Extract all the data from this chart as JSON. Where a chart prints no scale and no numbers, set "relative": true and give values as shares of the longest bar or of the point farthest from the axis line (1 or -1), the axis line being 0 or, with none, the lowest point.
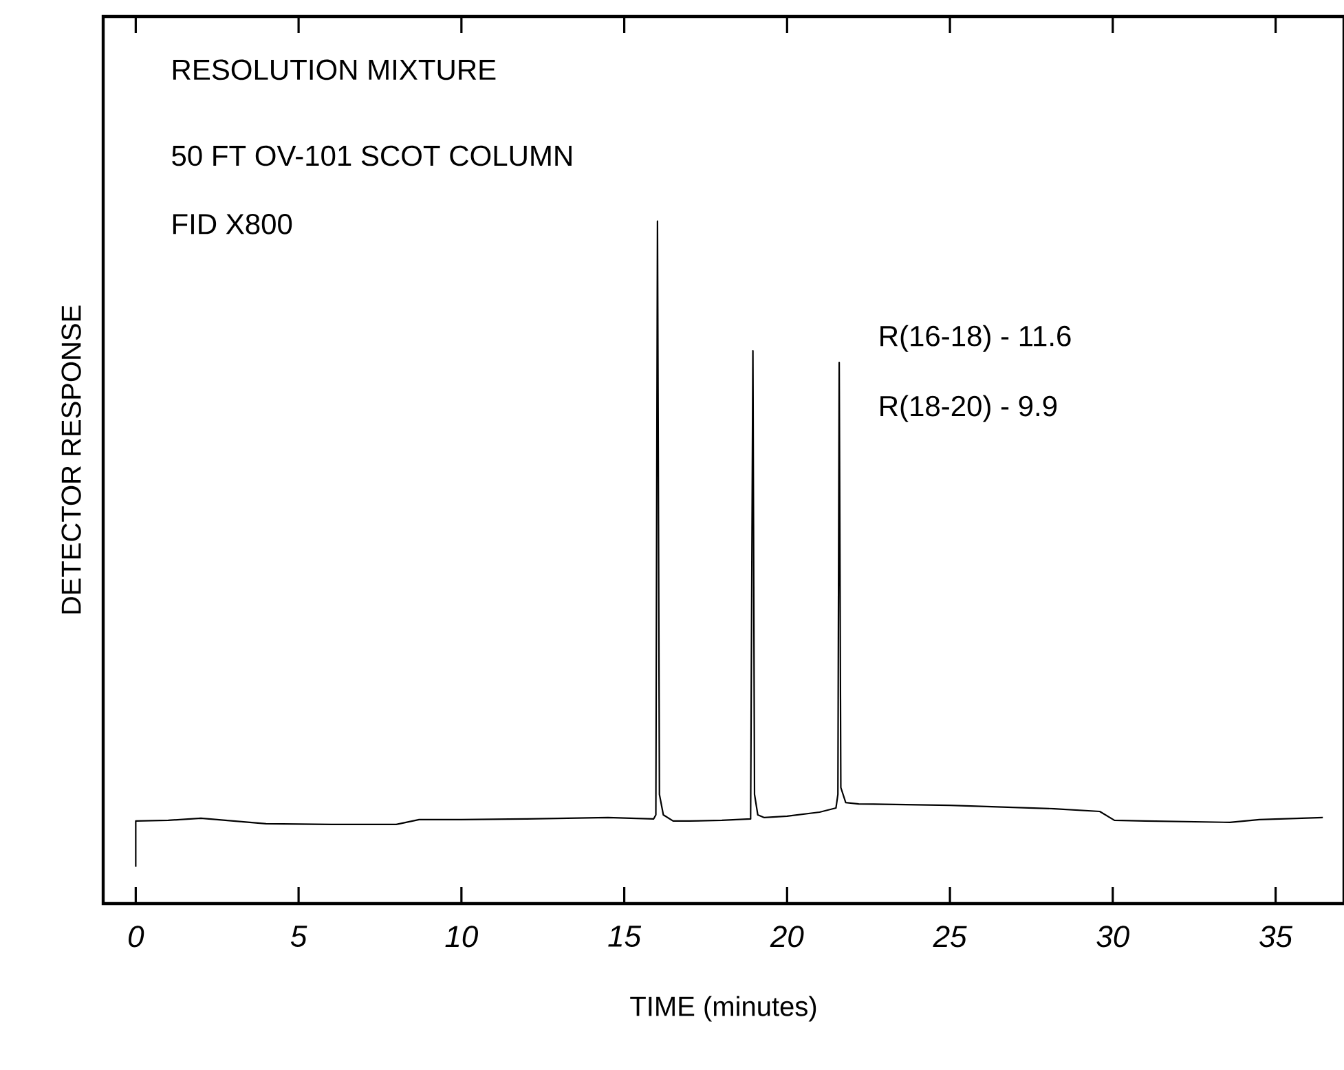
{
  "chart_data": {
    "type": "line",
    "relative": true,
    "color": "#000000",
    "xlabel": "TIME (minutes)",
    "ylabel": "DETECTOR RESPONSE",
    "xlim": [
      -1,
      37.1
    ],
    "xticks": [
      0,
      5,
      10,
      15,
      20,
      25,
      30,
      35
    ],
    "tick_labels": "x",
    "marker": "none",
    "line_style": "solid",
    "annotations": [
      "RESOLUTION   MIXTURE",
      "50  FT    OV-101    SCOT    COLUMN",
      "FID   X800",
      "R(16-18)  -  11.6",
      "R(18-20)  -  9.9"
    ],
    "x": [
      0,
      0,
      1,
      2,
      3,
      4,
      6,
      8,
      8.7,
      10,
      12,
      14.5,
      15.9,
      15.97,
      16.02,
      16.08,
      16.2,
      16.5,
      17,
      18,
      18.88,
      18.95,
      19.0,
      19.1,
      19.3,
      20,
      21,
      21.5,
      21.56,
      21.6,
      21.65,
      21.8,
      22.2,
      25,
      28.2,
      29.6,
      30.05,
      31,
      33.6,
      34.5,
      36.45
    ],
    "values": [
      0.054,
      0.121,
      0.122,
      0.125,
      0.121,
      0.117,
      0.116,
      0.116,
      0.123,
      0.123,
      0.124,
      0.126,
      0.124,
      0.13,
      1,
      0.16,
      0.13,
      0.121,
      0.121,
      0.122,
      0.124,
      0.81,
      0.16,
      0.13,
      0.126,
      0.128,
      0.134,
      0.14,
      0.16,
      0.793,
      0.17,
      0.148,
      0.146,
      0.144,
      0.139,
      0.135,
      0.122,
      0.121,
      0.119,
      0.123,
      0.126
    ]
  }
}
